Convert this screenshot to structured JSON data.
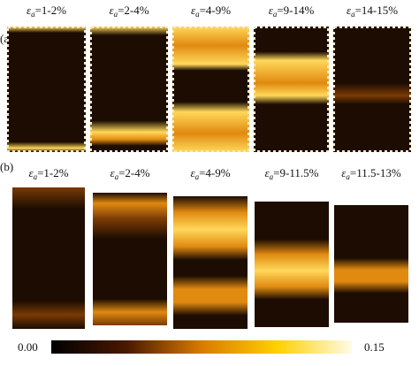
{
  "rows": [
    {
      "label": "(a)",
      "panels": [
        {
          "symbol": "ε",
          "subscript": "a",
          "range": "=1-2%"
        },
        {
          "symbol": "ε",
          "subscript": "a",
          "range": "=2-4%"
        },
        {
          "symbol": "ε",
          "subscript": "a",
          "range": "=4-9%"
        },
        {
          "symbol": "ε",
          "subscript": "a",
          "range": "=9-14%"
        },
        {
          "symbol": "ε",
          "subscript": "a",
          "range": "=14-15%"
        }
      ]
    },
    {
      "label": "(b)",
      "panels": [
        {
          "symbol": "ε",
          "subscript": "a",
          "range": "=1-2%"
        },
        {
          "symbol": "ε",
          "subscript": "a",
          "range": "=2-4%"
        },
        {
          "symbol": "ε",
          "subscript": "a",
          "range": "=4-9%"
        },
        {
          "symbol": "ε",
          "subscript": "a",
          "range": "=9-11.5%"
        },
        {
          "symbol": "ε",
          "subscript": "a",
          "range": "=11.5-13%"
        }
      ]
    }
  ],
  "colorbar": {
    "min": "0.00",
    "max": "0.15"
  }
}
